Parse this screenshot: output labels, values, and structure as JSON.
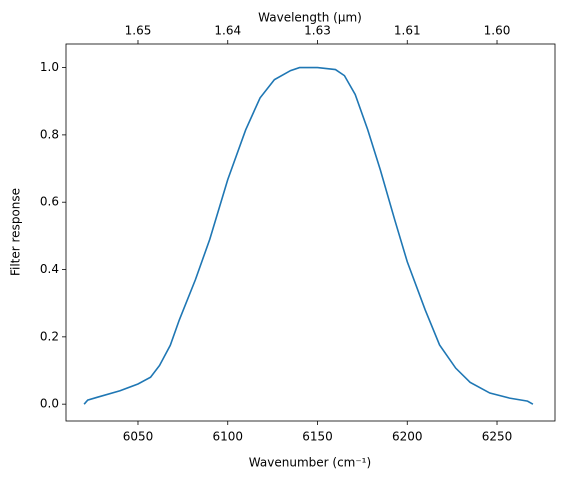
{
  "chart_data": {
    "type": "line",
    "xlabel": "Wavenumber (cm⁻¹)",
    "ylabel": "Filter response",
    "x2label": "Wavelength (μm)",
    "xlim": [
      6009.9,
      6282.3
    ],
    "ylim": [
      -0.05,
      1.07
    ],
    "xticks": [
      6050,
      6100,
      6150,
      6200,
      6250
    ],
    "x2ticks": [
      {
        "value": 6050,
        "label": "1.65"
      },
      {
        "value": 6100,
        "label": "1.64"
      },
      {
        "value": 6150,
        "label": "1.63"
      },
      {
        "value": 6200,
        "label": "1.61"
      },
      {
        "value": 6250,
        "label": "1.60"
      }
    ],
    "yticks": [
      {
        "value": 0,
        "label": "0.0"
      },
      0.2,
      0.4,
      0.6,
      0.8,
      {
        "value": 1,
        "label": "1.0"
      }
    ],
    "grid": false,
    "series": [
      {
        "color": "#1f77b4",
        "x": [
          6020,
          6022,
          6027,
          6040,
          6050,
          6057,
          6062,
          6068,
          6073,
          6082,
          6090,
          6100,
          6110,
          6118,
          6126,
          6135,
          6140,
          6150,
          6160,
          6165,
          6171,
          6178,
          6185,
          6193,
          6200,
          6210,
          6218,
          6227,
          6235,
          6246,
          6257,
          6267,
          6270
        ],
        "values": [
          0,
          0.012,
          0.02,
          0.04,
          0.06,
          0.08,
          0.115,
          0.175,
          0.25,
          0.37,
          0.49,
          0.667,
          0.815,
          0.91,
          0.964,
          0.991,
          1.0,
          1.0,
          0.994,
          0.976,
          0.92,
          0.815,
          0.696,
          0.548,
          0.423,
          0.28,
          0.176,
          0.107,
          0.065,
          0.033,
          0.018,
          0.009,
          0
        ]
      }
    ]
  }
}
